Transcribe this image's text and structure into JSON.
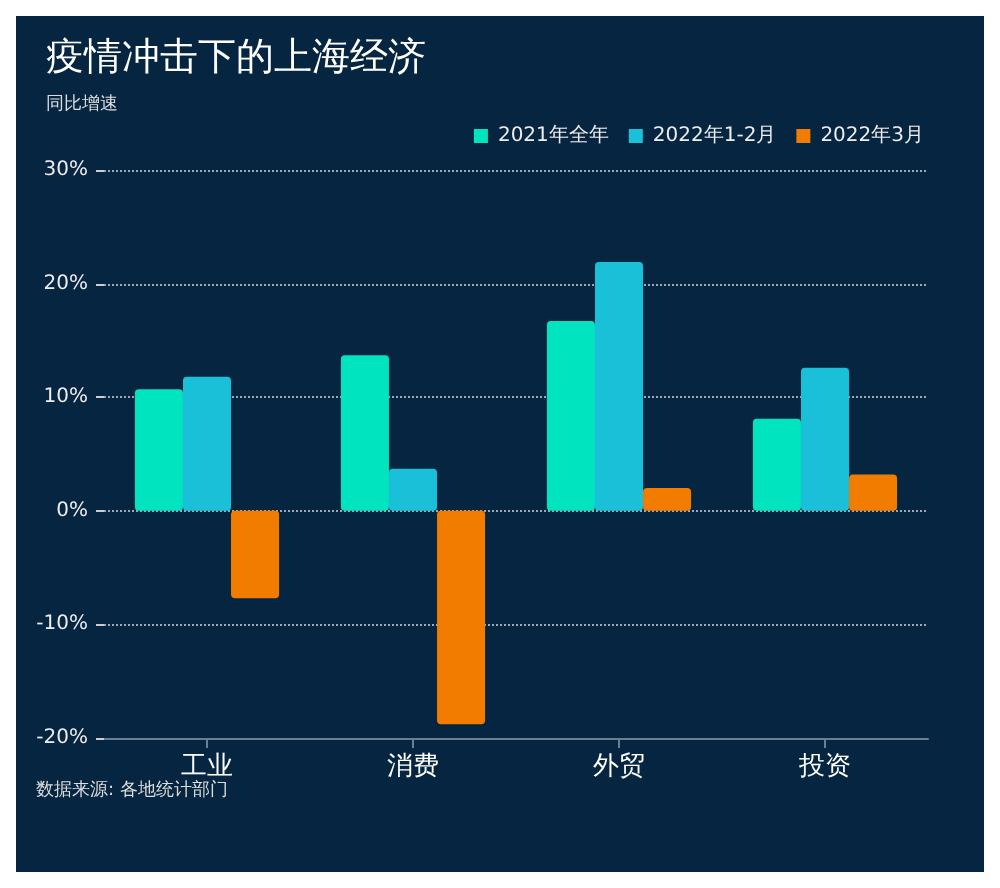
{
  "chart_data": {
    "type": "bar",
    "title": "疫情冲击下的上海经济",
    "ylabel": "同比增速",
    "categories": [
      "工业",
      "消费",
      "外贸",
      "投资"
    ],
    "series": [
      {
        "name": "2021年全年",
        "color": "#00e5c0",
        "values": [
          10.7,
          13.7,
          16.7,
          8.1
        ]
      },
      {
        "name": "2022年1-2月",
        "color": "#1ac0d8",
        "values": [
          11.8,
          3.7,
          21.9,
          12.6
        ]
      },
      {
        "name": "2022年3月",
        "color": "#f27c00",
        "values": [
          -7.7,
          -18.8,
          2.0,
          3.2
        ]
      }
    ],
    "ylim": [
      -20,
      30
    ],
    "yticks": [
      {
        "value": -20,
        "label": "-20%"
      },
      {
        "value": -10,
        "label": "-10%"
      },
      {
        "value": 0,
        "label": "0%"
      },
      {
        "value": 10,
        "label": "10%"
      },
      {
        "value": 20,
        "label": "20%"
      },
      {
        "value": 30,
        "label": "30%"
      }
    ],
    "grid": "y",
    "legend": "top right",
    "annotations": [
      "数据来源: 各地统计部门"
    ]
  }
}
